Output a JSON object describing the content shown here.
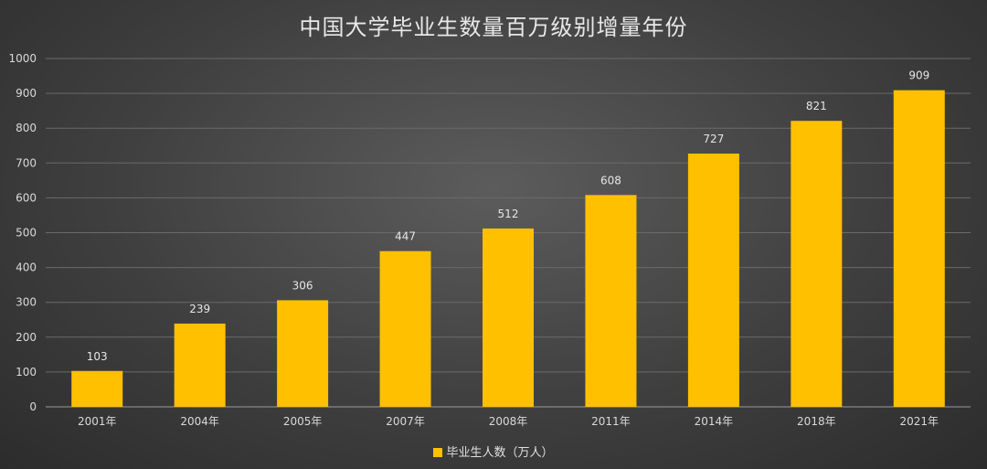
{
  "chart_data": {
    "type": "bar",
    "title": "中国大学毕业生数量百万级别增量年份",
    "categories": [
      "2001年",
      "2004年",
      "2005年",
      "2007年",
      "2008年",
      "2011年",
      "2014年",
      "2018年",
      "2021年"
    ],
    "series": [
      {
        "name": "毕业生人数（万人）",
        "values": [
          103,
          239,
          306,
          447,
          512,
          608,
          727,
          821,
          909
        ],
        "color": "#ffc000"
      }
    ],
    "ylim": [
      0,
      1000
    ],
    "yticks": [
      0,
      100,
      200,
      300,
      400,
      500,
      600,
      700,
      800,
      900,
      1000
    ],
    "grid": true,
    "legend": "bottom",
    "data_labels": true
  }
}
